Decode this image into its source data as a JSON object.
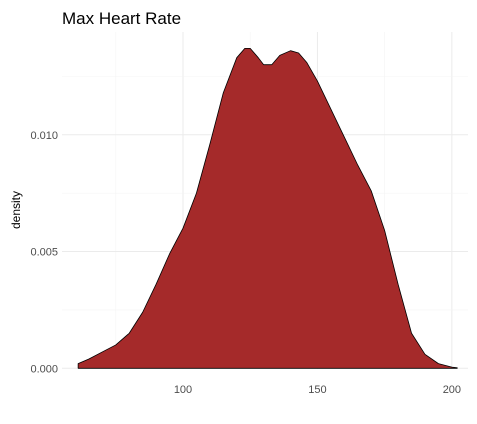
{
  "chart_data": {
    "type": "area",
    "title": "Max Heart Rate",
    "xlabel": "",
    "ylabel": "density",
    "xlim": [
      55,
      206
    ],
    "ylim": [
      -3e-05,
      0.0144
    ],
    "x_ticks": [
      100,
      150,
      200
    ],
    "x_tick_labels": [
      "100",
      "150",
      "200"
    ],
    "y_ticks": [
      0.0,
      0.005,
      0.01
    ],
    "y_tick_labels": [
      "0.000",
      "0.005",
      "0.010"
    ],
    "grid": true,
    "legend": "none",
    "fill_color": "#a52a2a",
    "line_color": "#000000",
    "series": [
      {
        "x": [
          61,
          65,
          70,
          75,
          80,
          85,
          90,
          95,
          100,
          105,
          110,
          115,
          120,
          123,
          125,
          128,
          130,
          133,
          136,
          140,
          143,
          146,
          150,
          155,
          160,
          165,
          170,
          175,
          180,
          185,
          190,
          195,
          200,
          202
        ],
        "y": [
          0.0002,
          0.0004,
          0.0007,
          0.001,
          0.0015,
          0.0024,
          0.0036,
          0.0049,
          0.006,
          0.0075,
          0.0096,
          0.0118,
          0.0133,
          0.0137,
          0.0137,
          0.0133,
          0.013,
          0.013,
          0.0134,
          0.0136,
          0.0135,
          0.0131,
          0.0123,
          0.0111,
          0.0099,
          0.0087,
          0.0076,
          0.0059,
          0.0036,
          0.0015,
          0.0006,
          0.0002,
          5e-05,
          2e-05
        ]
      }
    ]
  }
}
